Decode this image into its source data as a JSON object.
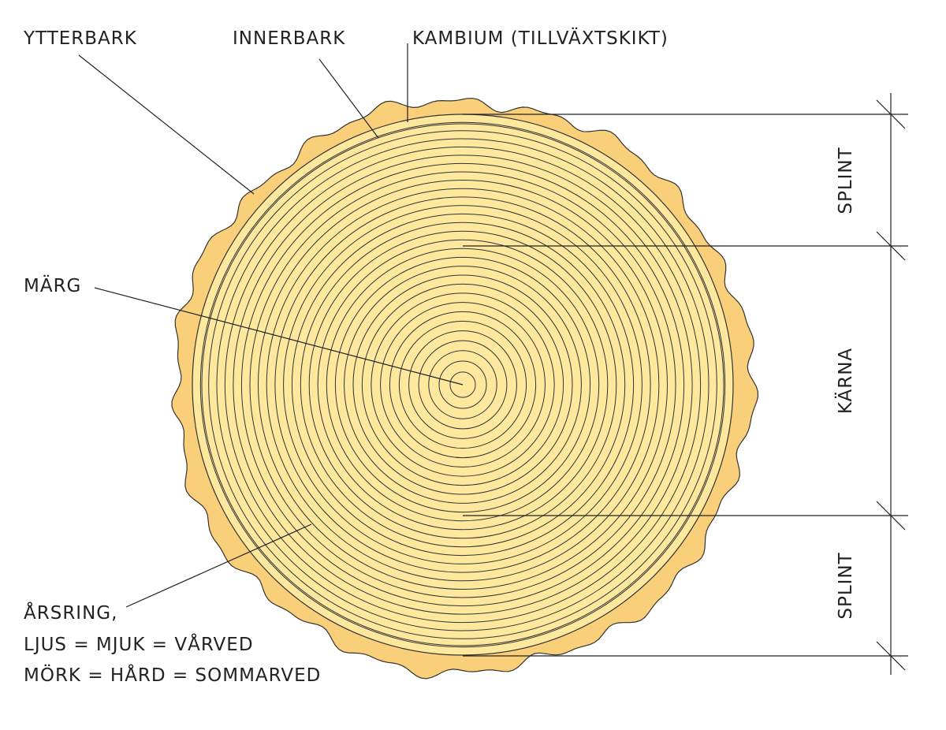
{
  "labels": {
    "outer_bark": "YTTERBARK",
    "inner_bark": "INNERBARK",
    "cambium": "KAMBIUM (TILLVÄXTSKIKT)",
    "pith": "MÄRG",
    "annual_ring": [
      "ÅRSRING,",
      "LJUS = MJUK = VÅRVED",
      "MÖRK = HÅRD = SOMMARVED"
    ]
  },
  "zones": [
    "SPLINT",
    "KÄRNA",
    "SPLINT"
  ]
}
